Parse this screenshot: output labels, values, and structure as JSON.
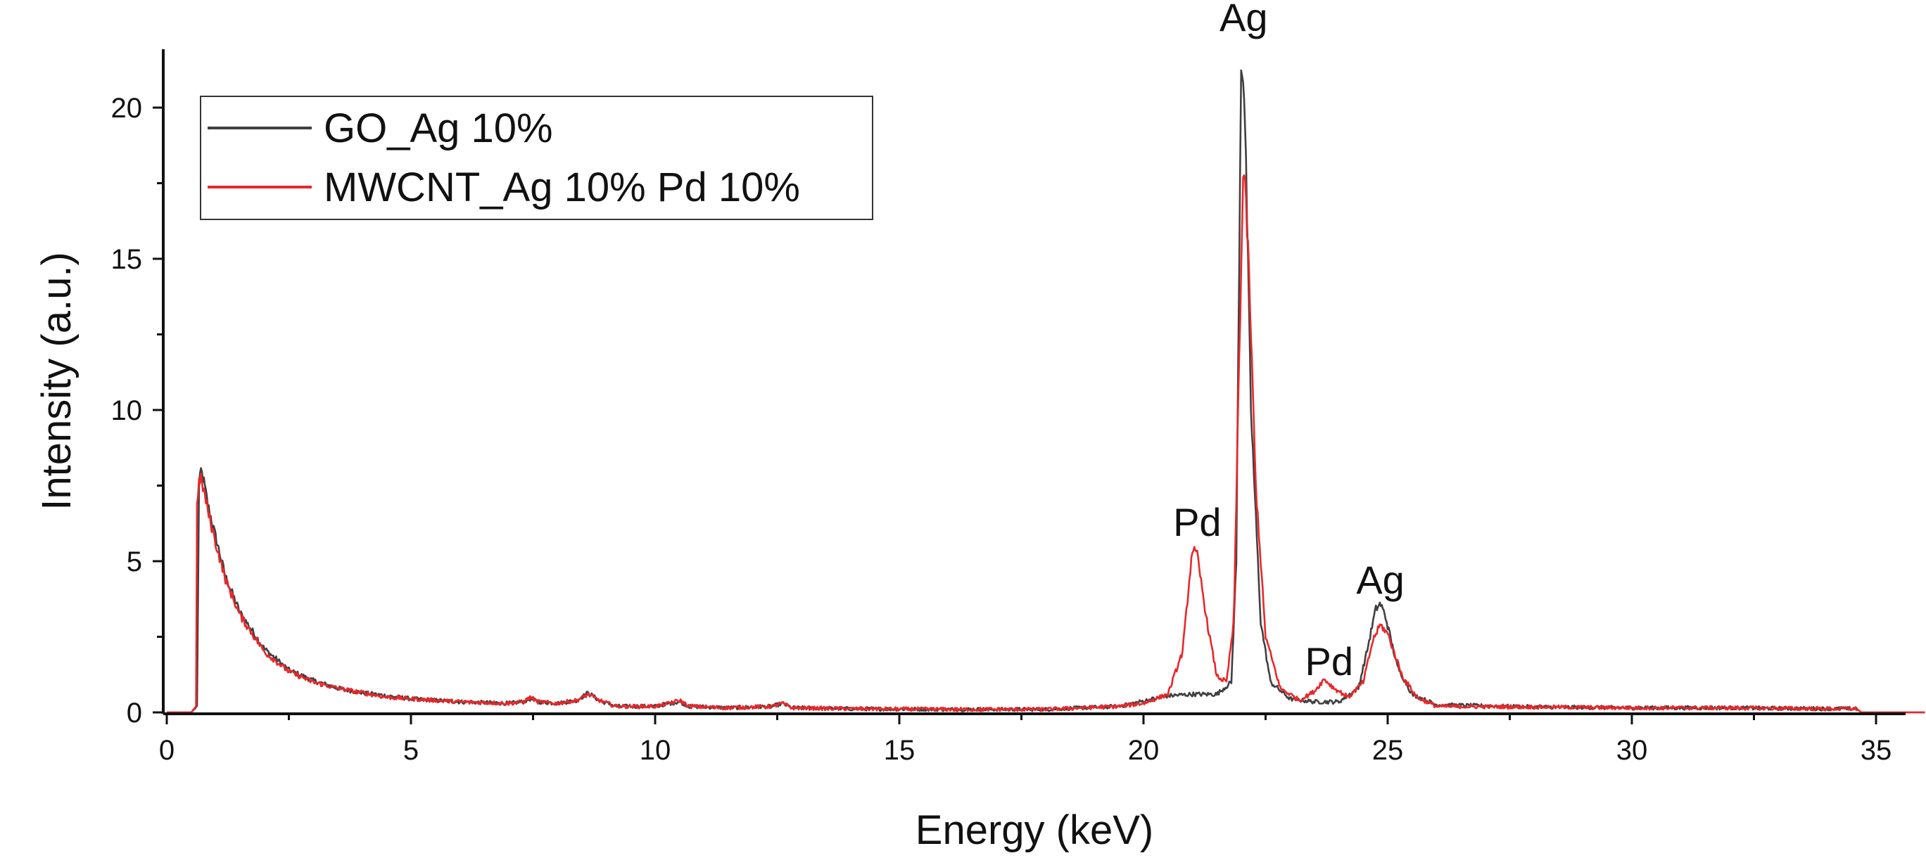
{
  "chart_data": {
    "type": "line",
    "title": "",
    "xlabel": "Energy (keV)",
    "ylabel": "Intensity (a.u.)",
    "xlim": [
      0,
      36
    ],
    "ylim": [
      0,
      22
    ],
    "grid": false,
    "legend_position": "top-left",
    "x_ticks": [
      0,
      5,
      10,
      15,
      20,
      25,
      30,
      35
    ],
    "x_tick_labels": [
      "0",
      "5",
      "10",
      "15",
      "20",
      "25",
      "30",
      "35"
    ],
    "y_ticks": [
      0,
      5,
      10,
      15,
      20
    ],
    "y_tick_labels": [
      "0",
      "5",
      "10",
      "15",
      "20"
    ],
    "series": [
      {
        "name": "GO_Ag 10%",
        "color": "#404040",
        "x": [
          0.0,
          0.5,
          0.62,
          0.66,
          0.7,
          0.75,
          0.85,
          1.0,
          1.2,
          1.5,
          2.0,
          2.5,
          3.0,
          3.5,
          4.0,
          4.5,
          5.0,
          6.0,
          7.0,
          7.3,
          7.45,
          7.6,
          8.0,
          8.4,
          8.63,
          8.85,
          9.2,
          10.0,
          10.3,
          10.5,
          10.7,
          11.5,
          12.4,
          12.6,
          12.8,
          14.0,
          16.0,
          18.0,
          19.5,
          20.5,
          21.0,
          21.5,
          21.8,
          21.9,
          22.0,
          22.05,
          22.1,
          22.2,
          22.4,
          22.6,
          23.0,
          23.5,
          24.0,
          24.4,
          24.6,
          24.75,
          24.85,
          24.95,
          25.2,
          25.5,
          26.0,
          28.0,
          30.0,
          32.0,
          34.0,
          34.6,
          34.7,
          36.0
        ],
        "y": [
          0.0,
          0.0,
          0.2,
          7.4,
          8.0,
          7.7,
          6.8,
          5.8,
          4.5,
          3.3,
          2.1,
          1.4,
          1.05,
          0.8,
          0.65,
          0.55,
          0.45,
          0.35,
          0.3,
          0.35,
          0.45,
          0.35,
          0.3,
          0.4,
          0.65,
          0.4,
          0.2,
          0.2,
          0.3,
          0.35,
          0.2,
          0.15,
          0.2,
          0.3,
          0.15,
          0.12,
          0.1,
          0.1,
          0.2,
          0.55,
          0.6,
          0.6,
          1.0,
          5.0,
          21.5,
          21.0,
          18.0,
          10.0,
          3.0,
          1.0,
          0.45,
          0.35,
          0.35,
          0.8,
          2.2,
          3.4,
          3.6,
          3.2,
          1.5,
          0.6,
          0.25,
          0.18,
          0.15,
          0.15,
          0.12,
          0.12,
          0.0,
          0.0
        ]
      },
      {
        "name": "MWCNT_Ag 10% Pd 10%",
        "color": "#e8282b",
        "x": [
          0.0,
          0.5,
          0.6,
          0.62,
          0.66,
          0.7,
          0.75,
          0.85,
          1.0,
          1.2,
          1.5,
          2.0,
          2.5,
          3.0,
          3.5,
          4.0,
          4.5,
          5.0,
          6.0,
          7.0,
          7.3,
          7.45,
          7.6,
          8.0,
          8.4,
          8.63,
          8.85,
          9.2,
          10.0,
          10.3,
          10.5,
          10.7,
          11.5,
          12.4,
          12.6,
          12.8,
          14.0,
          16.0,
          18.0,
          19.5,
          20.0,
          20.5,
          20.8,
          21.0,
          21.1,
          21.3,
          21.5,
          21.7,
          21.85,
          21.95,
          22.05,
          22.15,
          22.3,
          22.5,
          22.8,
          23.2,
          23.5,
          23.7,
          23.9,
          24.2,
          24.5,
          24.7,
          24.85,
          25.0,
          25.3,
          25.6,
          26.0,
          28.0,
          30.0,
          32.0,
          34.0,
          34.6,
          34.7,
          36.0
        ],
        "y": [
          0.0,
          0.0,
          0.2,
          7.0,
          7.6,
          7.7,
          7.4,
          6.6,
          5.6,
          4.4,
          3.2,
          2.0,
          1.35,
          1.0,
          0.8,
          0.65,
          0.5,
          0.45,
          0.35,
          0.3,
          0.35,
          0.5,
          0.35,
          0.3,
          0.4,
          0.6,
          0.4,
          0.2,
          0.2,
          0.3,
          0.4,
          0.2,
          0.15,
          0.2,
          0.3,
          0.15,
          0.12,
          0.1,
          0.1,
          0.2,
          0.3,
          0.6,
          2.0,
          5.4,
          5.2,
          3.0,
          1.2,
          1.0,
          3.0,
          11.0,
          18.3,
          15.0,
          7.5,
          2.5,
          0.8,
          0.4,
          0.7,
          1.1,
          0.8,
          0.5,
          1.0,
          2.4,
          2.9,
          2.6,
          1.2,
          0.5,
          0.2,
          0.18,
          0.15,
          0.15,
          0.12,
          0.12,
          0.0,
          0.0
        ]
      }
    ],
    "annotations": [
      {
        "text": "Ag",
        "x": 22.05,
        "y": 22.3
      },
      {
        "text": "Pd",
        "x": 21.1,
        "y": 5.6
      },
      {
        "text": "Pd",
        "x": 23.8,
        "y": 1.0
      },
      {
        "text": "Ag",
        "x": 24.85,
        "y": 3.7
      }
    ]
  }
}
